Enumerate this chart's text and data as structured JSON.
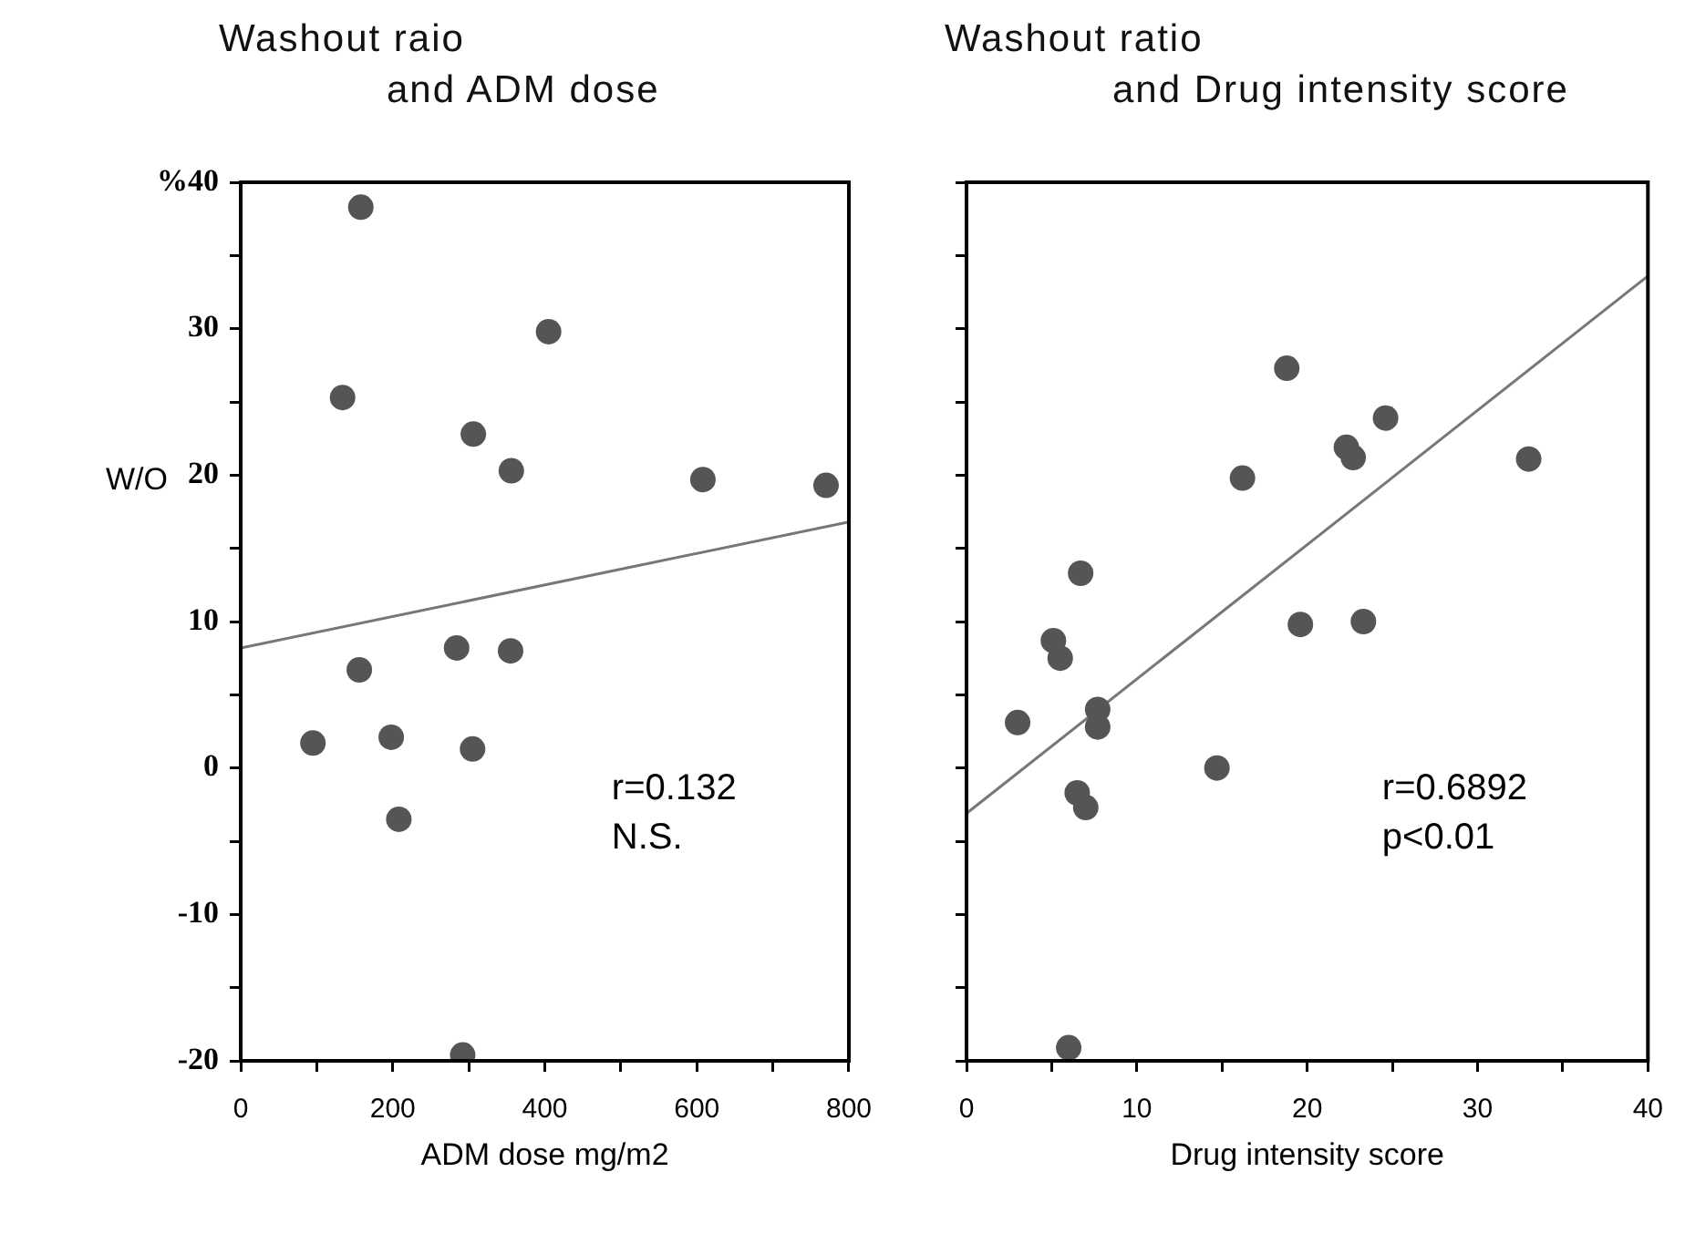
{
  "chart_data": [
    {
      "type": "scatter",
      "title": "Washout raio\nand ADM dose",
      "xlabel": "ADM dose mg/m2",
      "ylabel": "W/O",
      "xlim": [
        0,
        800
      ],
      "xticks": [
        0,
        {
          "value": 100,
          "label": null
        },
        200,
        {
          "value": 300,
          "label": null
        },
        400,
        {
          "value": 500,
          "label": null
        },
        600,
        {
          "value": 700,
          "label": null
        },
        800
      ],
      "ylim": [
        -20,
        40
      ],
      "yticks": [
        -20,
        {
          "value": -15,
          "label": null
        },
        -10,
        {
          "value": -5,
          "label": null
        },
        0,
        {
          "value": 5,
          "label": null
        },
        10,
        {
          "value": 15,
          "label": null
        },
        20,
        {
          "value": 25,
          "label": null
        },
        30,
        {
          "value": 35,
          "label": null
        },
        {
          "value": 40,
          "label": "%40"
        }
      ],
      "grid": false,
      "legend": false,
      "marker": "circle",
      "annotations": [
        "r=0.132",
        "N.S."
      ],
      "series": [
        {
          "color": "#555555",
          "x": [
            158,
            134,
            405,
            306,
            356,
            608,
            770,
            156,
            284,
            355,
            95,
            198,
            305,
            208,
            292
          ],
          "values": [
            38.3,
            25.3,
            29.8,
            22.8,
            20.3,
            19.7,
            19.3,
            6.7,
            8.2,
            8.0,
            1.7,
            2.1,
            1.3,
            -3.5,
            -19.6
          ]
        },
        {
          "type": "line",
          "color": "#777777",
          "marker": "none",
          "x": [
            0,
            800
          ],
          "values": [
            8.2,
            16.8
          ]
        }
      ]
    },
    {
      "type": "scatter",
      "title": "Washout ratio\nand Drug intensity score",
      "xlabel": "Drug intensity score",
      "xlim": [
        0,
        40
      ],
      "xticks": [
        0,
        {
          "value": 5,
          "label": null
        },
        10,
        {
          "value": 15,
          "label": null
        },
        20,
        {
          "value": 25,
          "label": null
        },
        30,
        {
          "value": 35,
          "label": null
        },
        40
      ],
      "ylim": [
        -20,
        40
      ],
      "yticks": [
        {
          "value": -20,
          "label": null
        },
        {
          "value": -15,
          "label": null
        },
        {
          "value": -10,
          "label": null
        },
        {
          "value": -5,
          "label": null
        },
        {
          "value": 0,
          "label": null
        },
        {
          "value": 5,
          "label": null
        },
        {
          "value": 10,
          "label": null
        },
        {
          "value": 15,
          "label": null
        },
        {
          "value": 20,
          "label": null
        },
        {
          "value": 25,
          "label": null
        },
        {
          "value": 30,
          "label": null
        },
        {
          "value": 35,
          "label": null
        },
        {
          "value": 40,
          "label": null
        }
      ],
      "tick_labels": "x",
      "grid": false,
      "legend": false,
      "marker": "circle",
      "annotations": [
        "r=0.6892",
        "p<0.01"
      ],
      "series": [
        {
          "color": "#555555",
          "x": [
            18.8,
            24.6,
            22.3,
            22.7,
            33.0,
            16.2,
            6.7,
            5.1,
            5.5,
            19.6,
            23.3,
            3.0,
            7.7,
            7.7,
            14.7,
            6.5,
            7.0,
            6.0
          ],
          "values": [
            27.3,
            23.9,
            21.9,
            21.2,
            21.1,
            19.8,
            13.3,
            8.7,
            7.5,
            9.8,
            10.0,
            3.1,
            4.0,
            2.8,
            0.0,
            -1.7,
            -2.7,
            -19.1
          ]
        },
        {
          "type": "line",
          "color": "#777777",
          "marker": "none",
          "x": [
            0,
            40
          ],
          "values": [
            -3.1,
            33.6
          ]
        }
      ]
    }
  ]
}
